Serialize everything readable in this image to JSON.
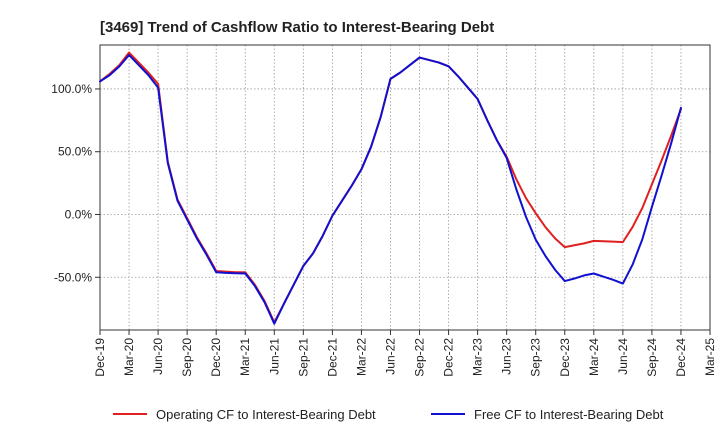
{
  "chart_data": {
    "type": "line",
    "title": "[3469]  Trend of Cashflow Ratio to Interest-Bearing Debt",
    "xlabel": "",
    "ylabel": "",
    "ylim": [
      -92,
      135
    ],
    "y_ticks": [
      {
        "value": 100,
        "label": "100.0%"
      },
      {
        "value": 50,
        "label": "50.0%"
      },
      {
        "value": 0,
        "label": "0.0%"
      },
      {
        "value": -50,
        "label": "-50.0%"
      }
    ],
    "x_ticks": [
      "Dec-19",
      "Mar-20",
      "Jun-20",
      "Sep-20",
      "Dec-20",
      "Mar-21",
      "Jun-21",
      "Sep-21",
      "Dec-21",
      "Mar-22",
      "Jun-22",
      "Sep-22",
      "Dec-22",
      "Mar-23",
      "Jun-23",
      "Sep-23",
      "Dec-23",
      "Mar-24",
      "Jun-24",
      "Sep-24",
      "Dec-24",
      "Mar-25"
    ],
    "grid": true,
    "legend_position": "bottom",
    "series": [
      {
        "name": "Operating CF to Interest-Bearing Debt",
        "color": "#e02020",
        "points": [
          {
            "x": "Dec-19",
            "y": 106
          },
          {
            "x": "Jan-20",
            "y": 112
          },
          {
            "x": "Feb-20",
            "y": 119
          },
          {
            "x": "Mar-20",
            "y": 129
          },
          {
            "x": "Apr-20",
            "y": 121
          },
          {
            "x": "May-20",
            "y": 113
          },
          {
            "x": "Jun-20",
            "y": 104
          },
          {
            "x": "Jul-20",
            "y": 42
          },
          {
            "x": "Aug-20",
            "y": 12
          },
          {
            "x": "Sep-20",
            "y": -3
          },
          {
            "x": "Oct-20",
            "y": -18
          },
          {
            "x": "Nov-20",
            "y": -31
          },
          {
            "x": "Dec-20",
            "y": -45
          },
          {
            "x": "Jan-21",
            "y": -45.5
          },
          {
            "x": "Feb-21",
            "y": -46
          },
          {
            "x": "Mar-21",
            "y": -46
          },
          {
            "x": "Apr-21",
            "y": -56
          },
          {
            "x": "May-21",
            "y": -69
          },
          {
            "x": "Jun-21",
            "y": -86
          },
          {
            "x": "Jul-21",
            "y": -71
          },
          {
            "x": "Aug-21",
            "y": -56
          },
          {
            "x": "Sep-21",
            "y": -41
          },
          {
            "x": "Oct-21",
            "y": -31
          },
          {
            "x": "Nov-21",
            "y": -17
          },
          {
            "x": "Dec-21",
            "y": -1
          },
          {
            "x": "Jan-22",
            "y": 11
          },
          {
            "x": "Feb-22",
            "y": 23
          },
          {
            "x": "Mar-22",
            "y": 36
          },
          {
            "x": "Apr-22",
            "y": 54
          },
          {
            "x": "May-22",
            "y": 78
          },
          {
            "x": "Jun-22",
            "y": 108
          },
          {
            "x": "Jul-22",
            "y": 113
          },
          {
            "x": "Aug-22",
            "y": 119
          },
          {
            "x": "Sep-22",
            "y": 125
          },
          {
            "x": "Oct-22",
            "y": 123
          },
          {
            "x": "Nov-22",
            "y": 121
          },
          {
            "x": "Dec-22",
            "y": 118
          },
          {
            "x": "Jan-23",
            "y": 110
          },
          {
            "x": "Feb-23",
            "y": 101
          },
          {
            "x": "Mar-23",
            "y": 92
          },
          {
            "x": "Apr-23",
            "y": 75
          },
          {
            "x": "May-23",
            "y": 59
          },
          {
            "x": "Jun-23",
            "y": 46
          },
          {
            "x": "Jul-23",
            "y": 28
          },
          {
            "x": "Aug-23",
            "y": 13
          },
          {
            "x": "Sep-23",
            "y": 1
          },
          {
            "x": "Oct-23",
            "y": -10
          },
          {
            "x": "Nov-23",
            "y": -19
          },
          {
            "x": "Dec-23",
            "y": -26
          },
          {
            "x": "Jan-24",
            "y": -24.5
          },
          {
            "x": "Feb-24",
            "y": -23
          },
          {
            "x": "Mar-24",
            "y": -21
          },
          {
            "x": "Apr-24",
            "y": -21.3
          },
          {
            "x": "May-24",
            "y": -21.6
          },
          {
            "x": "Jun-24",
            "y": -22
          },
          {
            "x": "Jul-24",
            "y": -10
          },
          {
            "x": "Aug-24",
            "y": 5
          },
          {
            "x": "Sep-24",
            "y": 24
          },
          {
            "x": "Oct-24",
            "y": 43
          },
          {
            "x": "Nov-24",
            "y": 63
          },
          {
            "x": "Dec-24",
            "y": 84
          }
        ]
      },
      {
        "name": "Free CF to Interest-Bearing Debt",
        "color": "#1010d0",
        "points": [
          {
            "x": "Dec-19",
            "y": 106
          },
          {
            "x": "Jan-20",
            "y": 111
          },
          {
            "x": "Feb-20",
            "y": 118
          },
          {
            "x": "Mar-20",
            "y": 127
          },
          {
            "x": "Apr-20",
            "y": 119
          },
          {
            "x": "May-20",
            "y": 111
          },
          {
            "x": "Jun-20",
            "y": 101
          },
          {
            "x": "Jul-20",
            "y": 41
          },
          {
            "x": "Aug-20",
            "y": 11
          },
          {
            "x": "Sep-20",
            "y": -4
          },
          {
            "x": "Oct-20",
            "y": -19
          },
          {
            "x": "Nov-20",
            "y": -32
          },
          {
            "x": "Dec-20",
            "y": -46
          },
          {
            "x": "Jan-21",
            "y": -46.5
          },
          {
            "x": "Feb-21",
            "y": -46.8
          },
          {
            "x": "Mar-21",
            "y": -47
          },
          {
            "x": "Apr-21",
            "y": -57
          },
          {
            "x": "May-21",
            "y": -70
          },
          {
            "x": "Jun-21",
            "y": -87
          },
          {
            "x": "Jul-21",
            "y": -71
          },
          {
            "x": "Aug-21",
            "y": -56
          },
          {
            "x": "Sep-21",
            "y": -41
          },
          {
            "x": "Oct-21",
            "y": -31
          },
          {
            "x": "Nov-21",
            "y": -17
          },
          {
            "x": "Dec-21",
            "y": -1
          },
          {
            "x": "Jan-22",
            "y": 11
          },
          {
            "x": "Feb-22",
            "y": 23
          },
          {
            "x": "Mar-22",
            "y": 36
          },
          {
            "x": "Apr-22",
            "y": 54
          },
          {
            "x": "May-22",
            "y": 78
          },
          {
            "x": "Jun-22",
            "y": 108
          },
          {
            "x": "Jul-22",
            "y": 113
          },
          {
            "x": "Aug-22",
            "y": 119
          },
          {
            "x": "Sep-22",
            "y": 125
          },
          {
            "x": "Oct-22",
            "y": 123
          },
          {
            "x": "Nov-22",
            "y": 121
          },
          {
            "x": "Dec-22",
            "y": 118
          },
          {
            "x": "Jan-23",
            "y": 110
          },
          {
            "x": "Feb-23",
            "y": 101
          },
          {
            "x": "Mar-23",
            "y": 92
          },
          {
            "x": "Apr-23",
            "y": 75
          },
          {
            "x": "May-23",
            "y": 59
          },
          {
            "x": "Jun-23",
            "y": 45
          },
          {
            "x": "Jul-23",
            "y": 20
          },
          {
            "x": "Aug-23",
            "y": -2
          },
          {
            "x": "Sep-23",
            "y": -20
          },
          {
            "x": "Oct-23",
            "y": -33
          },
          {
            "x": "Nov-23",
            "y": -44
          },
          {
            "x": "Dec-23",
            "y": -53
          },
          {
            "x": "Jan-24",
            "y": -51
          },
          {
            "x": "Feb-24",
            "y": -48.5
          },
          {
            "x": "Mar-24",
            "y": -47
          },
          {
            "x": "Apr-24",
            "y": -49.5
          },
          {
            "x": "May-24",
            "y": -52
          },
          {
            "x": "Jun-24",
            "y": -55
          },
          {
            "x": "Jul-24",
            "y": -40
          },
          {
            "x": "Aug-24",
            "y": -20
          },
          {
            "x": "Sep-24",
            "y": 6
          },
          {
            "x": "Oct-24",
            "y": 31
          },
          {
            "x": "Nov-24",
            "y": 57
          },
          {
            "x": "Dec-24",
            "y": 85
          }
        ]
      }
    ]
  }
}
